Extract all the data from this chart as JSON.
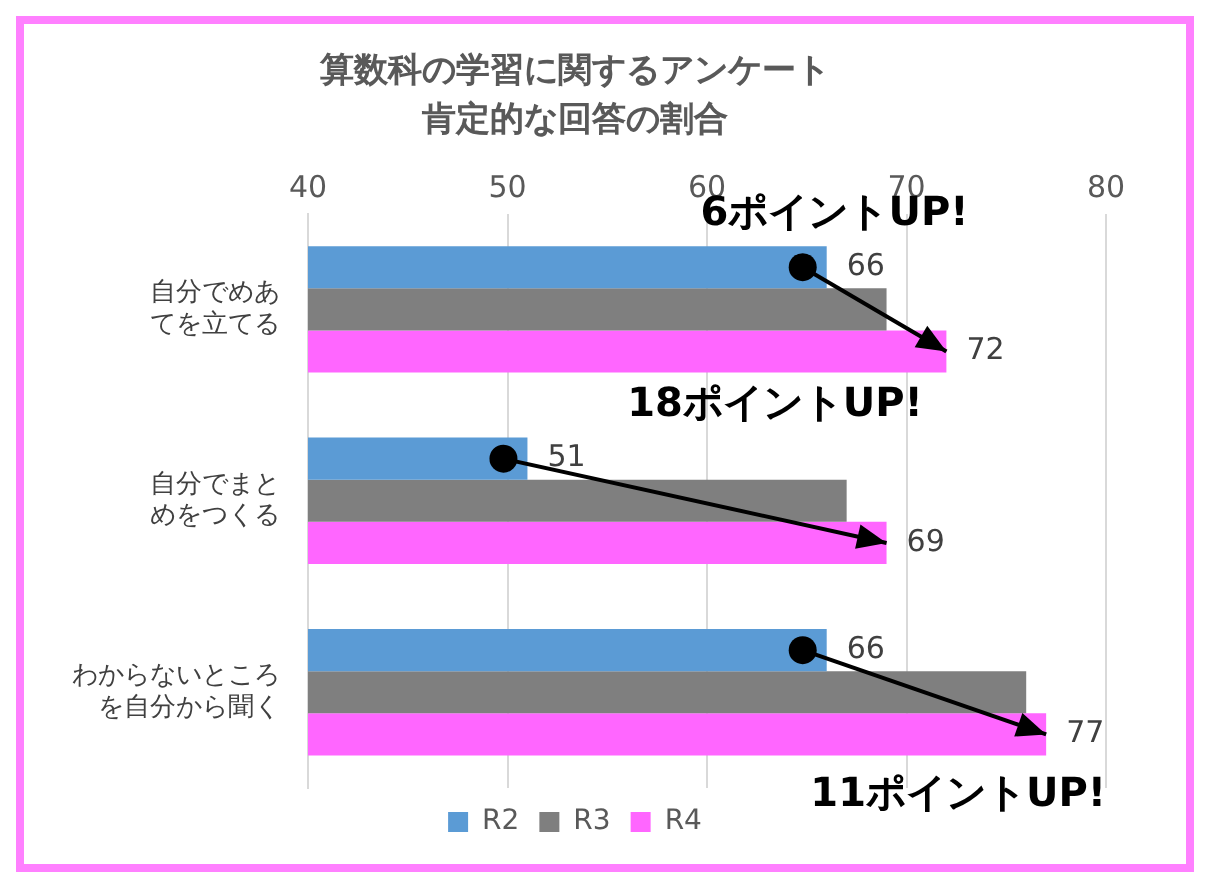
{
  "chart_data": {
    "type": "bar",
    "orientation": "horizontal",
    "title": "算数科の学習に関するアンケート",
    "subtitle": "肯定的な回答の割合",
    "categories": [
      "自分でめあてを立てる",
      "自分でまとめをつくる",
      "わからないところを自分から聞く"
    ],
    "series": [
      {
        "name": "R2",
        "color": "#5b9bd5",
        "values": [
          66,
          51,
          66
        ],
        "value_labels": [
          "66",
          "51",
          "66"
        ]
      },
      {
        "name": "R3",
        "color": "#7f7f7f",
        "values": [
          69,
          67,
          76
        ]
      },
      {
        "name": "R4",
        "color": "#ff66ff",
        "values": [
          72,
          69,
          77
        ],
        "value_labels": [
          "72",
          "69",
          "77"
        ]
      }
    ],
    "xlim": [
      40,
      80
    ],
    "xticks": [
      40,
      50,
      60,
      70,
      80
    ],
    "grid": "x",
    "legend": "bottom",
    "annotations": [
      "6ポイントUP!",
      "18ポイントUP!",
      "11ポイントUP!"
    ]
  }
}
